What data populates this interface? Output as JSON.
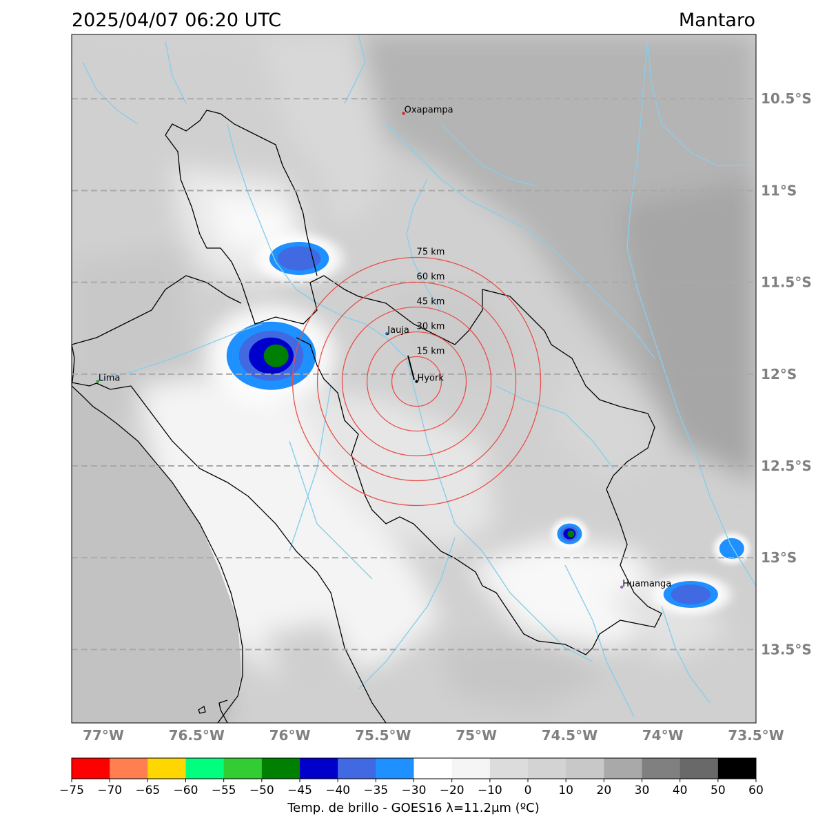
{
  "header": {
    "timestamp": "2025/04/07 06:20 UTC",
    "region": "Mantaro"
  },
  "map": {
    "lon_range": [
      -77.17,
      -73.5
    ],
    "lat_range": [
      -13.9,
      -10.15
    ],
    "x_ticks": [
      {
        "lon": -77.0,
        "label": "77°W"
      },
      {
        "lon": -76.5,
        "label": "76.5°W"
      },
      {
        "lon": -76.0,
        "label": "76°W"
      },
      {
        "lon": -75.5,
        "label": "75.5°W"
      },
      {
        "lon": -75.0,
        "label": "75°W"
      },
      {
        "lon": -74.5,
        "label": "74.5°W"
      },
      {
        "lon": -74.0,
        "label": "74°W"
      },
      {
        "lon": -73.5,
        "label": "73.5°W"
      }
    ],
    "y_ticks": [
      {
        "lat": -10.5,
        "label": "10.5°S"
      },
      {
        "lat": -11.0,
        "label": "11°S"
      },
      {
        "lat": -11.5,
        "label": "11.5°S"
      },
      {
        "lat": -12.0,
        "label": "12°S"
      },
      {
        "lat": -12.5,
        "label": "12.5°S"
      },
      {
        "lat": -13.0,
        "label": "13°S"
      },
      {
        "lat": -13.5,
        "label": "13.5°S"
      }
    ],
    "cities": [
      {
        "name": "Oxapampa",
        "lon": -75.39,
        "lat": -10.58,
        "color": "#d62728"
      },
      {
        "name": "Jauja",
        "lon": -75.48,
        "lat": -11.78,
        "color": "#1f77b4"
      },
      {
        "name": "Hyork",
        "lon": -75.32,
        "lat": -12.04,
        "color": "#000000"
      },
      {
        "name": "Lima",
        "lon": -77.03,
        "lat": -12.04,
        "color": "#2ca02c"
      },
      {
        "name": "Huamanga",
        "lon": -74.22,
        "lat": -13.16,
        "color": "#9467bd"
      }
    ],
    "radar_center": {
      "lon": -75.32,
      "lat": -12.04
    },
    "range_rings": [
      {
        "km": 15,
        "label": "15 km"
      },
      {
        "km": 30,
        "label": "30 km"
      },
      {
        "km": 45,
        "label": "45 km"
      },
      {
        "km": 60,
        "label": "60 km"
      },
      {
        "km": 75,
        "label": "75 km"
      }
    ],
    "ring_color": "#e8504a",
    "river_color": "#87ceeb",
    "grid_color": "#a9a9a9"
  },
  "storms": [
    {
      "lon": -75.95,
      "lat": -11.37,
      "min_temp": -40
    },
    {
      "lon": -76.1,
      "lat": -11.9,
      "min_temp": -50
    },
    {
      "lon": -74.5,
      "lat": -12.87,
      "min_temp": -50
    },
    {
      "lon": -73.85,
      "lat": -13.2,
      "min_temp": -40
    },
    {
      "lon": -73.63,
      "lat": -12.95,
      "min_temp": -35
    }
  ],
  "colorbar": {
    "label": "Temp. de brillo - GOES16 λ=11.2μm (ºC)",
    "bins": [
      {
        "from": -75,
        "to": -70,
        "color": "#ff0000"
      },
      {
        "from": -70,
        "to": -65,
        "color": "#ff7f50"
      },
      {
        "from": -65,
        "to": -60,
        "color": "#ffd700"
      },
      {
        "from": -60,
        "to": -55,
        "color": "#00ff7f"
      },
      {
        "from": -55,
        "to": -50,
        "color": "#32cd32"
      },
      {
        "from": -50,
        "to": -45,
        "color": "#008000"
      },
      {
        "from": -45,
        "to": -40,
        "color": "#0000cd"
      },
      {
        "from": -40,
        "to": -35,
        "color": "#4169e1"
      },
      {
        "from": -35,
        "to": -30,
        "color": "#1e90ff"
      },
      {
        "from": -30,
        "to": -20,
        "color": "#ffffff"
      },
      {
        "from": -20,
        "to": -10,
        "color": "#f5f5f5"
      },
      {
        "from": -10,
        "to": 0,
        "color": "#dcdcdc"
      },
      {
        "from": 0,
        "to": 10,
        "color": "#d3d3d3"
      },
      {
        "from": 10,
        "to": 20,
        "color": "#c8c8c8"
      },
      {
        "from": 20,
        "to": 30,
        "color": "#a9a9a9"
      },
      {
        "from": 30,
        "to": 40,
        "color": "#808080"
      },
      {
        "from": 40,
        "to": 50,
        "color": "#696969"
      },
      {
        "from": 50,
        "to": 60,
        "color": "#000000"
      }
    ],
    "ticks": [
      "−75",
      "−70",
      "−65",
      "−60",
      "−55",
      "−50",
      "−45",
      "−40",
      "−35",
      "−30",
      "−20",
      "−10",
      "0",
      "10",
      "20",
      "30",
      "40",
      "50",
      "60"
    ]
  }
}
